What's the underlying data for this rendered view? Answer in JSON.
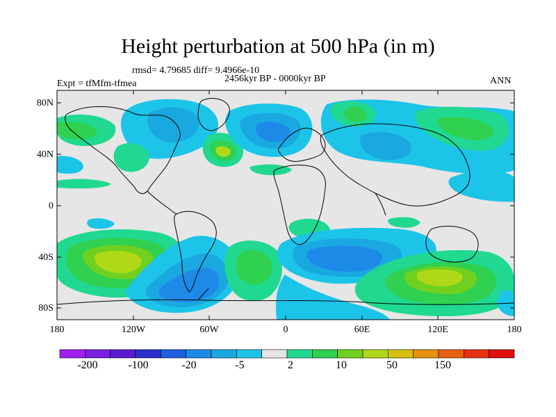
{
  "title": "Height perturbation at 500 hPa (in m)",
  "stats": "rmsd= 4.79685 diff= 9.4966e-10",
  "period": "2456kyr BP - 0000kyr BP",
  "expt": "Expt = tfMfm-tfmea",
  "season": "ANN",
  "lat_labels": [
    "80N",
    "40N",
    "0",
    "40S",
    "80S"
  ],
  "lon_labels": [
    "180",
    "120W",
    "60W",
    "0",
    "60E",
    "120E",
    "180"
  ],
  "colorbar": {
    "colors": [
      "#a020f0",
      "#7a1fe0",
      "#5a1ad0",
      "#2f2fd0",
      "#1e60e0",
      "#1e8ae8",
      "#1aa8e0",
      "#1cc4e8",
      "#e6e6e6",
      "#20d890",
      "#30d050",
      "#70d020",
      "#b0d818",
      "#d8c010",
      "#e89010",
      "#e86010",
      "#e83010",
      "#e01010"
    ],
    "labels": [
      "-200",
      "-100",
      "-20",
      "-5",
      "2",
      "10",
      "50",
      "150"
    ]
  },
  "contour_colors": {
    "blue_light": "#1cc4e8",
    "blue_mid": "#1aa8e0",
    "blue_dark": "#1e8ae8",
    "neutral": "#e6e6e6",
    "green_light": "#20d890",
    "green": "#30d050",
    "green_yellow": "#70d020",
    "yellow_green": "#b0d818"
  }
}
